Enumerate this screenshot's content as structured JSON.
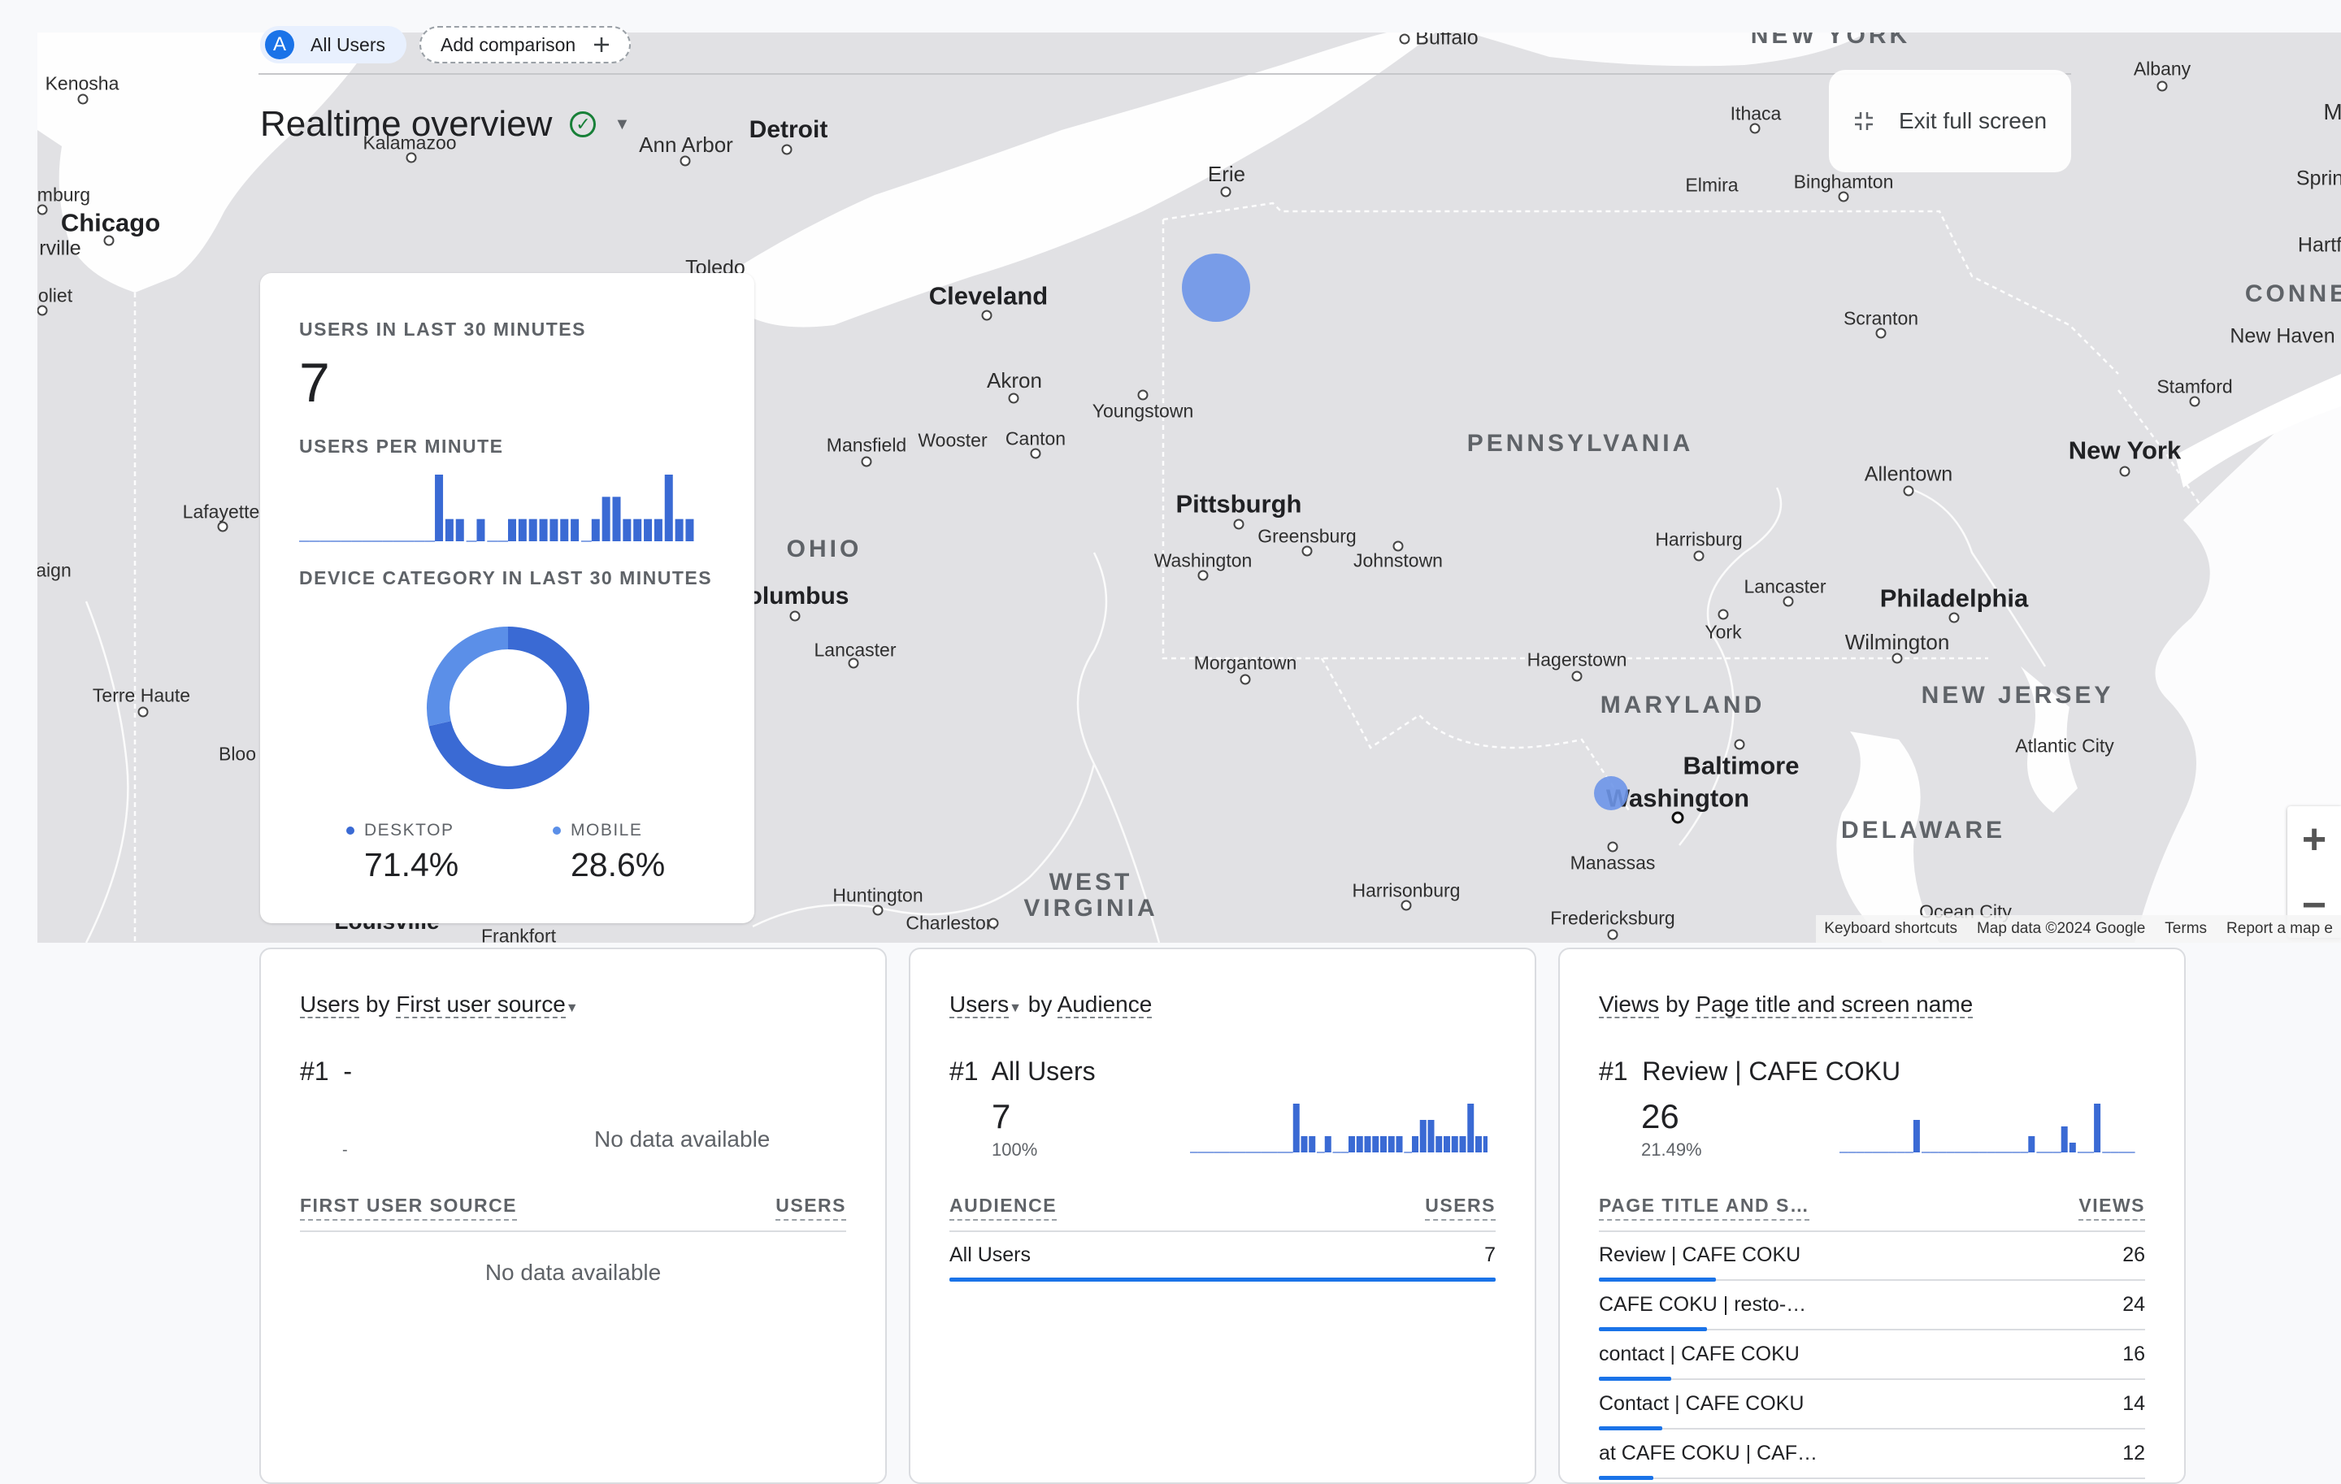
{
  "header": {
    "segment_chip": {
      "badge": "A",
      "label": "All Users"
    },
    "add_comparison": "Add comparison",
    "title": "Realtime overview",
    "exit_full_screen": "Exit full screen"
  },
  "map": {
    "places": {
      "kenosha": "Kenosha",
      "chicago": "Chicago",
      "umburg": "umburg",
      "rville": "rville",
      "joliet": "oliet",
      "lafayette": "Lafayette",
      "aign": "aign",
      "terre_haute": "Terre Haute",
      "bloo": "Bloo",
      "kalamazoo": "Kalamazoo",
      "ann_arbor": "Ann Arbor",
      "detroit": "Detroit",
      "toledo": "Toledo",
      "buffalo": "Buffalo",
      "new_york_state": "NEW YORK",
      "albany": "Albany",
      "ithaca": "Ithaca",
      "elmira": "Elmira",
      "binghamton": "Binghamton",
      "erie": "Erie",
      "cleveland": "Cleveland",
      "akron": "Akron",
      "youngstown": "Youngstown",
      "mansfield": "Mansfield",
      "wooster": "Wooster",
      "canton": "Canton",
      "scranton": "Scranton",
      "pennsylvania": "PENNSYLVANIA",
      "pittsburgh": "Pittsburgh",
      "greensburg": "Greensburg",
      "washington_pa": "Washington",
      "johnstown": "Johnstown",
      "ohio": "OHIO",
      "columbus": "olumbus",
      "lancaster_oh": "Lancaster",
      "morgantown": "Morgantown",
      "hagerstown": "Hagerstown",
      "harrisburg": "Harrisburg",
      "lancaster_pa": "Lancaster",
      "york": "York",
      "allentown": "Allentown",
      "new_york_city": "New York",
      "stamford": "Stamford",
      "new_haven": "New Haven",
      "connecticut": "CONNE",
      "hartford": "Hartf",
      "springfield": "Sprin",
      "philadelphia": "Philadelphia",
      "wilmington": "Wilmington",
      "maryland": "MARYLAND",
      "baltimore": "Baltimore",
      "washington_dc": "Washington",
      "new_jersey": "NEW JERSEY",
      "atlantic_city": "Atlantic City",
      "delaware": "DELAWARE",
      "manassas": "Manassas",
      "fredericksburg": "Fredericksburg",
      "harrisonburg": "Harrisonburg",
      "west_virginia_1": "WEST",
      "west_virginia_2": "VIRGINIA",
      "huntington": "Huntington",
      "charleston": "Charleston",
      "louisville": "Louisville",
      "frankfort": "Frankfort",
      "ocean_city": "Ocean City",
      "m_edge": "M"
    },
    "attribution": [
      "Keyboard shortcuts",
      "Map data ©2024 Google",
      "Terms",
      "Report a map e"
    ],
    "zoom_in": "+",
    "zoom_out": "−"
  },
  "realtime_card": {
    "users_30_label": "USERS IN LAST 30 MINUTES",
    "users_30_value": "7",
    "per_minute_label": "USERS PER MINUTE",
    "device_label": "DEVICE CATEGORY IN LAST 30 MINUTES",
    "per_minute_values": [
      0,
      0,
      0,
      0,
      0,
      0,
      0,
      0,
      0,
      0,
      0,
      0,
      0,
      3,
      1,
      1,
      0,
      1,
      0,
      0,
      1,
      1,
      1,
      1,
      1,
      1,
      1,
      0,
      1,
      2,
      2,
      1,
      1,
      1,
      1,
      3,
      1,
      1
    ],
    "devices": [
      {
        "label": "DESKTOP",
        "value": "71.4%",
        "share": 0.714,
        "color": "#3a6ad4"
      },
      {
        "label": "MOBILE",
        "value": "28.6%",
        "share": 0.286,
        "color": "#5b8fe8"
      }
    ]
  },
  "cards": [
    {
      "metric": "Users",
      "by": "by",
      "dimension": "First user source",
      "rank": "#1",
      "top_item": "-",
      "top_sub": "-",
      "chart_nodata": "No data available",
      "col_left": "FIRST USER SOURCE",
      "col_right": "USERS",
      "table_nodata": "No data available"
    },
    {
      "metric": "Users",
      "by": "by",
      "dimension": "Audience",
      "rank": "#1",
      "top_item": "All Users",
      "top_value": "7",
      "top_share": "100%",
      "spark": [
        0,
        0,
        0,
        0,
        0,
        0,
        0,
        0,
        0,
        0,
        0,
        0,
        0,
        3,
        1,
        1,
        0,
        1,
        0,
        0,
        1,
        1,
        1,
        1,
        1,
        1,
        1,
        0,
        1,
        2,
        2,
        1,
        1,
        1,
        1,
        3,
        1,
        1
      ],
      "col_left": "AUDIENCE",
      "col_right": "USERS",
      "rows": [
        {
          "name": "All Users",
          "value": "7",
          "share": 1.0
        }
      ]
    },
    {
      "metric": "Views",
      "by": "by",
      "dimension": "Page title and screen name",
      "rank": "#1",
      "top_item": "Review | CAFE COKU",
      "top_value": "26",
      "top_share": "21.49%",
      "spark": [
        0,
        0,
        0,
        0,
        0,
        0,
        0,
        0,
        0,
        1,
        0,
        0,
        0,
        0,
        0,
        0,
        0,
        0,
        0,
        0,
        0,
        0,
        0,
        0.5,
        0,
        0,
        0,
        0.8,
        0.3,
        0,
        0,
        1.5,
        0,
        0,
        0,
        0
      ],
      "col_left": "PAGE TITLE AND S…",
      "col_right": "VIEWS",
      "rows": [
        {
          "name": "Review | CAFE COKU",
          "value": "26",
          "share": 0.2149
        },
        {
          "name": "CAFE COKU | resto-…",
          "value": "24",
          "share": 0.198
        },
        {
          "name": "contact | CAFE COKU",
          "value": "16",
          "share": 0.132
        },
        {
          "name": "Contact | CAFE COKU",
          "value": "14",
          "share": 0.116
        },
        {
          "name": "at CAFE COKU | CAF…",
          "value": "12",
          "share": 0.099
        }
      ]
    }
  ]
}
